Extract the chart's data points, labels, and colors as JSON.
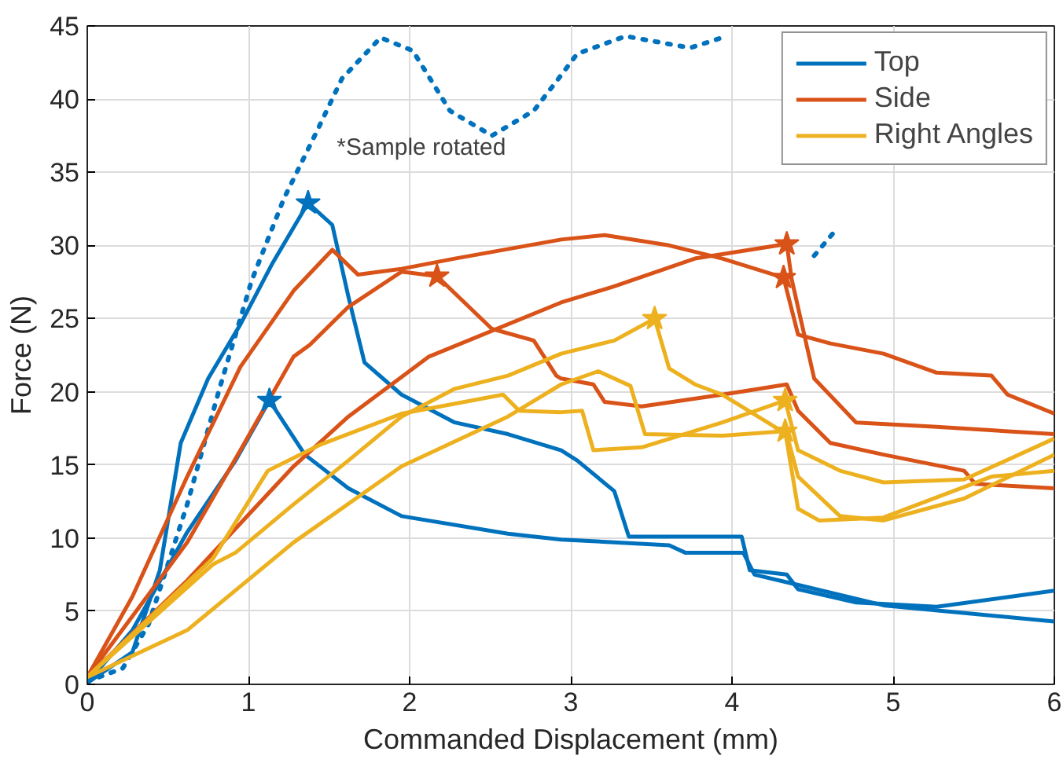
{
  "chart_data": {
    "type": "line",
    "xlabel": "Commanded Displacement (mm)",
    "ylabel": "Force (N)",
    "xlim": [
      0,
      6
    ],
    "ylim": [
      0,
      45
    ],
    "xticks": [
      0,
      1,
      2,
      3,
      4,
      5,
      6
    ],
    "yticks": [
      0,
      5,
      10,
      15,
      20,
      25,
      30,
      35,
      40,
      45
    ],
    "grid": true,
    "legend": "top right",
    "annotations": [
      "*Sample rotated"
    ],
    "series": [
      {
        "color": "#0072bd",
        "line_style": "dotted",
        "x": [
          0,
          0.22,
          0.38,
          0.62,
          0.82,
          1.02,
          1.22,
          1.42,
          1.58,
          1.82,
          2.02,
          2.25,
          2.51,
          2.77,
          2.91,
          3.04,
          3.34,
          3.74,
          3.94,
          4.2,
          4.51,
          4.64
        ],
        "values": [
          0.2,
          1.1,
          4.1,
          12.3,
          20.2,
          27.6,
          33.2,
          37.7,
          41.4,
          44.2,
          43.3,
          39.2,
          37.5,
          39.2,
          41.2,
          43.1,
          44.3,
          43.5,
          44.2,
          null,
          29.3,
          31.0
        ]
      },
      {
        "name": "Top",
        "color": "#0072bd",
        "line_style": "solid",
        "x": [
          0,
          0.28,
          0.45,
          0.58,
          0.75,
          0.95,
          1.15,
          1.37,
          1.52,
          1.62,
          1.72,
          1.95,
          2.28,
          2.61,
          2.94,
          3.04,
          3.27,
          3.36,
          3.61,
          4.06,
          4.11,
          4.34,
          4.41,
          4.77,
          5.27,
          6.0
        ],
        "values": [
          0.1,
          2.2,
          7.8,
          16.5,
          20.9,
          24.6,
          28.8,
          32.9,
          31.4,
          26.5,
          22.0,
          19.8,
          17.9,
          17.1,
          16.0,
          15.3,
          13.2,
          10.1,
          10.1,
          10.1,
          7.8,
          7.5,
          6.5,
          5.6,
          5.3,
          6.4
        ]
      },
      {
        "color": "#0072bd",
        "line_style": "solid",
        "x": [
          0,
          0.28,
          0.62,
          0.92,
          1.13,
          1.35,
          1.62,
          1.95,
          2.61,
          2.94,
          3.61,
          3.71,
          4.07,
          4.14,
          4.37,
          4.94,
          6.0
        ],
        "values": [
          0.1,
          3.7,
          10.4,
          15.3,
          19.4,
          15.7,
          13.4,
          11.5,
          10.3,
          9.9,
          9.5,
          9.0,
          9.0,
          7.5,
          6.9,
          5.4,
          4.3
        ]
      },
      {
        "name": "Side",
        "color": "#d95319",
        "line_style": "solid",
        "x": [
          0,
          0.28,
          0.62,
          0.95,
          1.28,
          1.52,
          1.68,
          1.95,
          2.28,
          2.94,
          3.21,
          3.61,
          3.94,
          4.32,
          4.41,
          4.61,
          4.94,
          5.27,
          5.61,
          5.71,
          6.0
        ],
        "values": [
          0.5,
          6.0,
          14.2,
          21.7,
          26.9,
          29.7,
          28.0,
          28.4,
          29.1,
          30.4,
          30.7,
          30.0,
          29.1,
          27.8,
          23.9,
          23.3,
          22.6,
          21.3,
          21.1,
          19.8,
          18.5
        ]
      },
      {
        "color": "#d95319",
        "line_style": "solid",
        "x": [
          0,
          0.62,
          0.95,
          1.28,
          1.38,
          1.62,
          1.95,
          2.17,
          2.51,
          2.77,
          2.91,
          2.94,
          3.14,
          3.21,
          3.44,
          3.94,
          4.34,
          4.41,
          4.61,
          4.94,
          5.44,
          5.51,
          6.0
        ],
        "values": [
          0.5,
          9.7,
          16.0,
          22.4,
          23.2,
          25.8,
          28.2,
          27.9,
          24.3,
          23.5,
          21.1,
          20.9,
          20.5,
          19.3,
          19.0,
          19.8,
          20.5,
          18.7,
          16.5,
          15.7,
          14.6,
          13.7,
          13.4
        ]
      },
      {
        "color": "#d95319",
        "line_style": "solid",
        "x": [
          0,
          0.62,
          1.28,
          1.62,
          2.12,
          2.94,
          3.27,
          3.77,
          4.34,
          4.37,
          4.51,
          4.77,
          5.27,
          6.0
        ],
        "values": [
          0.5,
          7.1,
          14.9,
          18.3,
          22.4,
          26.1,
          27.2,
          29.1,
          30.1,
          27.7,
          20.9,
          17.9,
          17.6,
          17.1
        ]
      },
      {
        "name": "Right Angles",
        "color": "#edb120",
        "line_style": "solid",
        "x": [
          0,
          0.78,
          0.92,
          1.28,
          1.62,
          1.95,
          2.28,
          2.61,
          2.94,
          3.27,
          3.52,
          3.61,
          3.77,
          3.94,
          4.34,
          4.41,
          4.67,
          4.94,
          5.44,
          6.0
        ],
        "values": [
          0.5,
          8.2,
          9.0,
          12.3,
          15.3,
          18.3,
          20.2,
          21.1,
          22.6,
          23.5,
          25.0,
          21.6,
          20.5,
          19.8,
          17.1,
          14.2,
          11.5,
          11.2,
          12.7,
          15.7
        ]
      },
      {
        "color": "#edb120",
        "line_style": "solid",
        "x": [
          0,
          0.45,
          0.78,
          1.12,
          1.45,
          1.95,
          2.58,
          2.68,
          2.94,
          3.07,
          3.14,
          3.44,
          3.94,
          4.33,
          4.41,
          4.67,
          4.94,
          5.44,
          6.0
        ],
        "values": [
          0.5,
          5.2,
          8.6,
          14.6,
          16.4,
          18.5,
          19.8,
          18.7,
          18.6,
          18.7,
          16.0,
          16.2,
          17.9,
          19.4,
          16.0,
          14.6,
          13.8,
          14.0,
          16.8
        ]
      },
      {
        "color": "#edb120",
        "line_style": "solid",
        "x": [
          0,
          0.62,
          1.28,
          1.95,
          2.61,
          2.94,
          3.17,
          3.37,
          3.46,
          3.94,
          4.33,
          4.41,
          4.54,
          4.94,
          5.61,
          6.0
        ],
        "values": [
          0.5,
          3.7,
          9.7,
          14.9,
          18.3,
          20.5,
          21.4,
          20.4,
          17.1,
          17.0,
          17.3,
          12.0,
          11.2,
          11.4,
          14.2,
          14.6
        ]
      },
      {
        "type": "scatter",
        "marker": "star",
        "color": "#0072bd",
        "x": [
          1.37,
          1.13
        ],
        "values": [
          32.9,
          19.4
        ]
      },
      {
        "type": "scatter",
        "marker": "star",
        "color": "#d95319",
        "x": [
          2.17,
          4.32,
          4.34
        ],
        "values": [
          27.9,
          27.8,
          30.1
        ]
      },
      {
        "type": "scatter",
        "marker": "star",
        "color": "#edb120",
        "x": [
          3.52,
          4.33,
          4.33
        ],
        "values": [
          25.0,
          19.4,
          17.3
        ]
      }
    ]
  }
}
